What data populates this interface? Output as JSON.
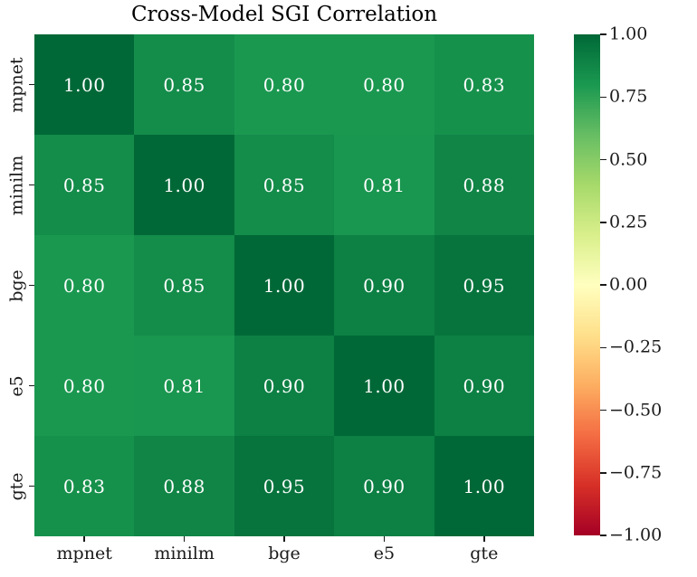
{
  "chart_data": {
    "type": "heatmap",
    "title": "Cross-Model SGI Correlation",
    "x_categories": [
      "mpnet",
      "minilm",
      "bge",
      "e5",
      "gte"
    ],
    "y_categories": [
      "mpnet",
      "minilm",
      "bge",
      "e5",
      "gte"
    ],
    "matrix": [
      [
        1.0,
        0.85,
        0.8,
        0.8,
        0.83
      ],
      [
        0.85,
        1.0,
        0.85,
        0.81,
        0.88
      ],
      [
        0.8,
        0.85,
        1.0,
        0.9,
        0.95
      ],
      [
        0.8,
        0.81,
        0.9,
        1.0,
        0.9
      ],
      [
        0.83,
        0.88,
        0.95,
        0.9,
        1.0
      ]
    ],
    "annotation_decimals": 2,
    "vmin": -1.0,
    "vmax": 1.0,
    "colormap": "RdYlGn",
    "colormap_anchors": [
      "#a50026",
      "#d73027",
      "#f46d43",
      "#fdae61",
      "#fee08b",
      "#ffffbf",
      "#d9ef8b",
      "#a6d96a",
      "#66bd63",
      "#1a9850",
      "#006837"
    ],
    "colorbar_tick_labels": [
      "1.00",
      "0.75",
      "0.50",
      "0.25",
      "0.00",
      "−0.25",
      "−0.50",
      "−0.75",
      "−1.00"
    ],
    "colorbar_position": "right",
    "grid": false,
    "cell_text_color": "#ffffff",
    "axis_text_color": "#1a1a1a"
  }
}
